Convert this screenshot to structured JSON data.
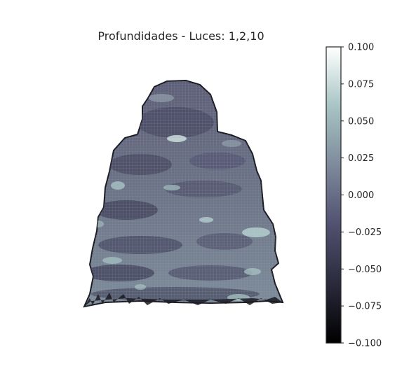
{
  "chart_data": {
    "type": "surface",
    "title": "Profundidades - Luces: 1,2,10",
    "colorbar": {
      "colormap": "bone",
      "colormap_stops": [
        "#000000",
        "#2a2a3c",
        "#515170",
        "#7d8a9b",
        "#a8c4c4",
        "#ffffff"
      ],
      "range": [
        -0.1,
        0.1
      ],
      "ticks": [
        0.1,
        0.075,
        0.05,
        0.025,
        0.0,
        -0.025,
        -0.05,
        -0.075,
        -0.1
      ],
      "tick_labels": [
        "0.100",
        "0.075",
        "0.050",
        "0.025",
        "0.000",
        "−0.025",
        "−0.050",
        "−0.075",
        "−0.100"
      ]
    },
    "axes_visible": false,
    "grid": false
  }
}
